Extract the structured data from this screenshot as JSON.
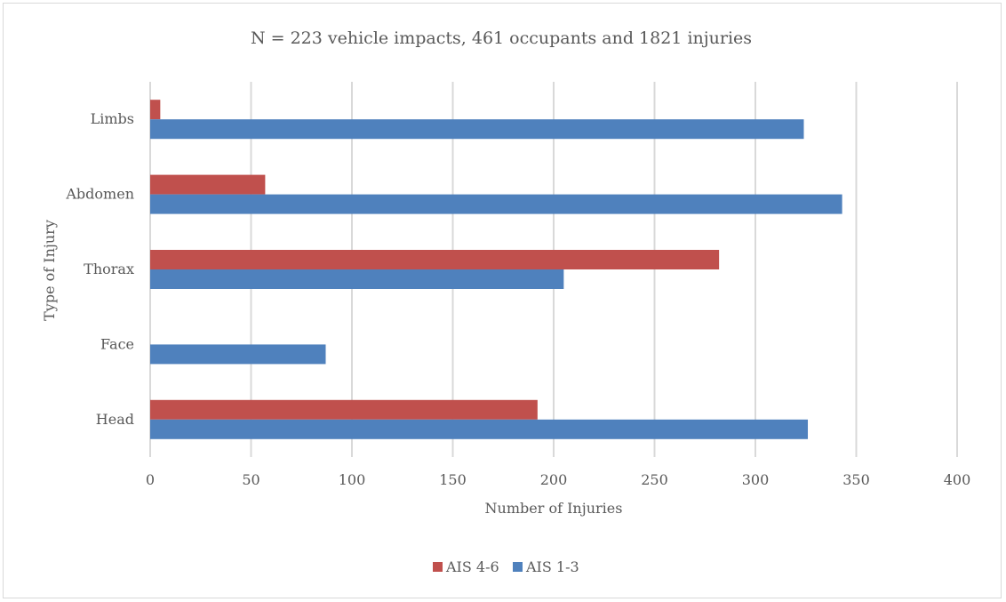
{
  "chart_data": {
    "type": "bar",
    "orientation": "horizontal",
    "title": "N = 223 vehicle impacts, 461 occupants and 1821 injuries",
    "xlabel": "Number of Injuries",
    "ylabel": "Type of Injury",
    "categories": [
      "Head",
      "Face",
      "Thorax",
      "Abdomen",
      "Limbs"
    ],
    "series": [
      {
        "name": "AIS 4-6",
        "color": "#c0504d",
        "values": [
          192,
          0,
          282,
          57,
          5
        ]
      },
      {
        "name": "AIS 1-3",
        "color": "#4f81bd",
        "values": [
          326,
          87,
          205,
          343,
          324
        ]
      }
    ],
    "xlim": [
      0,
      400
    ],
    "xticks": [
      0,
      50,
      100,
      150,
      200,
      250,
      300,
      350,
      400
    ],
    "grid": true,
    "legend_position": "bottom"
  }
}
